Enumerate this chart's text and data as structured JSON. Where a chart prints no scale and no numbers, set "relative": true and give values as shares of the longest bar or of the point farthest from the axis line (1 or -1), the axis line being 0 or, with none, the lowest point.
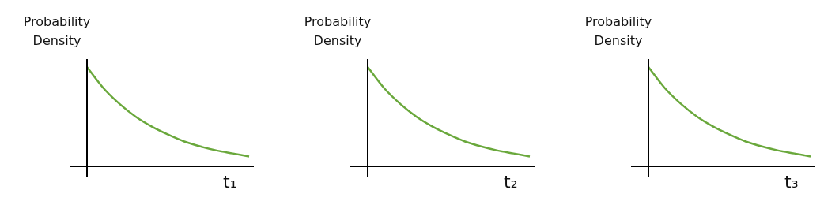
{
  "chart_data": [
    {
      "type": "line",
      "relative": true,
      "ylabel": "Probability Density",
      "xlabel": "t₁",
      "categories": [
        null,
        null,
        null,
        null,
        null,
        null,
        null,
        null,
        null,
        null,
        null
      ],
      "series": [
        {
          "color": "#6aa83c",
          "values": [
            1,
            0.79,
            0.63,
            0.5,
            0.4,
            0.32,
            0.25,
            0.2,
            0.16,
            0.13,
            0.1
          ]
        }
      ]
    },
    {
      "type": "line",
      "relative": true,
      "ylabel": "Probability Density",
      "xlabel": "t₂",
      "categories": [
        null,
        null,
        null,
        null,
        null,
        null,
        null,
        null,
        null,
        null,
        null
      ],
      "series": [
        {
          "color": "#6aa83c",
          "values": [
            1,
            0.79,
            0.63,
            0.5,
            0.4,
            0.32,
            0.25,
            0.2,
            0.16,
            0.13,
            0.1
          ]
        }
      ]
    },
    {
      "type": "line",
      "relative": true,
      "ylabel": "Probability Density",
      "xlabel": "t₃",
      "categories": [
        null,
        null,
        null,
        null,
        null,
        null,
        null,
        null,
        null,
        null,
        null
      ],
      "series": [
        {
          "color": "#6aa83c",
          "values": [
            1,
            0.79,
            0.63,
            0.5,
            0.4,
            0.32,
            0.25,
            0.2,
            0.16,
            0.13,
            0.1
          ]
        }
      ]
    }
  ]
}
